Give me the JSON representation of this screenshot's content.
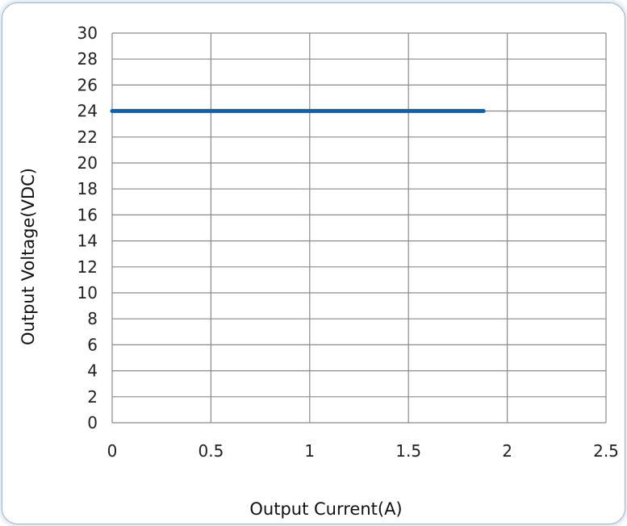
{
  "chart_data": {
    "type": "line",
    "xlabel": "Output Current(A)",
    "ylabel": "Output Voltage(VDC)",
    "xlim": [
      0,
      2.5
    ],
    "ylim": [
      0,
      30
    ],
    "x_ticks": [
      "0",
      "0.5",
      "1",
      "1.5",
      "2",
      "2.5"
    ],
    "y_ticks": [
      "0",
      "2",
      "4",
      "6",
      "8",
      "10",
      "12",
      "14",
      "16",
      "18",
      "20",
      "22",
      "24",
      "26",
      "28",
      "30"
    ],
    "grid": true,
    "series": [
      {
        "x": [
          0,
          1.88
        ],
        "y": [
          24,
          24
        ],
        "color": "#0a63b0"
      }
    ]
  }
}
